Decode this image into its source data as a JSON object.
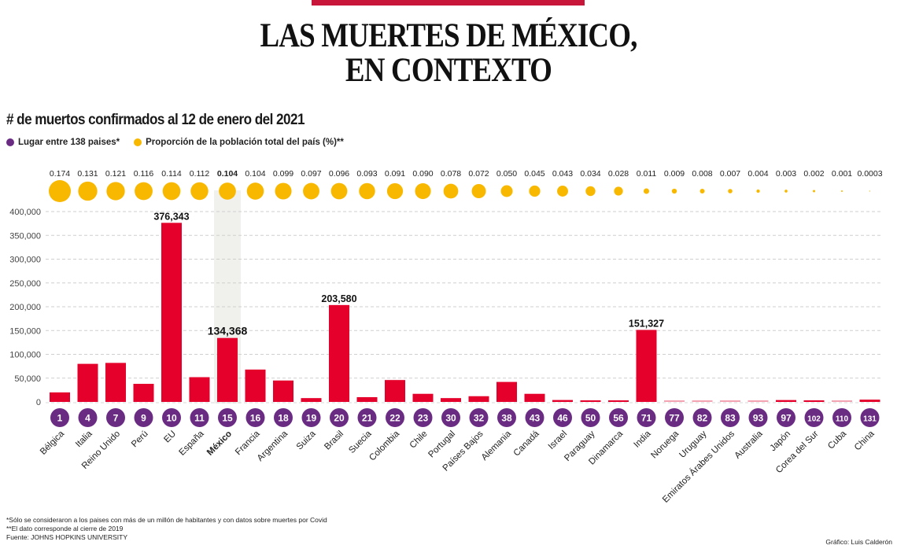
{
  "header": {
    "title_line1": "LAS MUERTES DE MÉXICO,",
    "title_line2": "EN CONTEXTO",
    "subtitle": "# de muertos confirmados al 12 de enero del 2021"
  },
  "legend": [
    {
      "label": "Lugar entre 138 paises*",
      "color": "#6a2c83"
    },
    {
      "label": "Proporción de la población total del país (%)**",
      "color": "#f9b800"
    }
  ],
  "colors": {
    "bar": "#e4002b",
    "bar_light": "#f4a3b3",
    "rank_circle": "#6a2c83",
    "proportion_circle": "#f9b800",
    "highlight_band": "#f0f0ec",
    "top_rule": "#c8163b"
  },
  "chart_data": {
    "type": "bar",
    "title": "LAS MUERTES DE MÉXICO, EN CONTEXTO",
    "subtitle": "# de muertos confirmados al 12 de enero del 2021",
    "xlabel": "",
    "ylabel": "",
    "ylim": [
      0,
      400000
    ],
    "yticks": [
      0,
      50000,
      100000,
      150000,
      200000,
      250000,
      300000,
      350000,
      400000
    ],
    "ytick_labels": [
      "0",
      "50,000",
      "100,000",
      "150,000",
      "200,000",
      "250,000",
      "300,000",
      "350,000",
      "400,000"
    ],
    "grid": true,
    "highlight": "México",
    "categories": [
      "Bélgica",
      "Italia",
      "Reino Unido",
      "Perú",
      "EU",
      "España",
      "México",
      "Francia",
      "Argentina",
      "Suiza",
      "Brasil",
      "Suecia",
      "Colombia",
      "Chile",
      "Portugal",
      "Países Bajos",
      "Alemania",
      "Canadá",
      "Israel",
      "Paraguay",
      "Dinamarca",
      "India",
      "Noruega",
      "Uruguay",
      "Emiratos Árabes Unidos",
      "Australia",
      "Japón",
      "Corea del Sur",
      "Cuba",
      "China"
    ],
    "series": [
      {
        "name": "Muertos confirmados",
        "values": [
          20000,
          80000,
          82000,
          38000,
          376343,
          52000,
          134368,
          68000,
          45000,
          8000,
          203580,
          10000,
          46000,
          17000,
          8000,
          12000,
          42000,
          17000,
          4000,
          2000,
          1500,
          151327,
          450,
          200,
          600,
          900,
          3900,
          1100,
          150,
          4800
        ]
      },
      {
        "name": "Lugar entre 138 paises",
        "values": [
          1,
          4,
          7,
          9,
          10,
          11,
          15,
          16,
          18,
          19,
          20,
          21,
          22,
          23,
          30,
          32,
          38,
          43,
          46,
          50,
          56,
          71,
          77,
          82,
          83,
          93,
          97,
          102,
          110,
          131
        ]
      },
      {
        "name": "Proporción de la población total del país (%)",
        "values": [
          0.174,
          0.131,
          0.121,
          0.116,
          0.114,
          0.112,
          0.104,
          0.104,
          0.099,
          0.097,
          0.096,
          0.093,
          0.091,
          0.09,
          0.078,
          0.072,
          0.05,
          0.045,
          0.043,
          0.034,
          0.028,
          0.011,
          0.009,
          0.008,
          0.007,
          0.004,
          0.003,
          0.002,
          0.001,
          0.0003
        ]
      }
    ],
    "proportion_labels": [
      "0.174",
      "0.131",
      "0.121",
      "0.116",
      "0.114",
      "0.112",
      "0.104",
      "0.104",
      "0.099",
      "0.097",
      "0.096",
      "0.093",
      "0.091",
      "0.090",
      "0.078",
      "0.072",
      "0.050",
      "0.045",
      "0.043",
      "0.034",
      "0.028",
      "0.011",
      "0.009",
      "0.008",
      "0.007",
      "0.004",
      "0.003",
      "0.002",
      "0.001",
      "0.0003"
    ],
    "data_labels": [
      {
        "category": "EU",
        "text": "376,343"
      },
      {
        "category": "México",
        "text": "134,368"
      },
      {
        "category": "Brasil",
        "text": "203,580"
      },
      {
        "category": "India",
        "text": "151,327"
      }
    ]
  },
  "footer": {
    "note1": "*Sólo se consideraron a los paises con más de un millón de habitantes y con datos sobre muertes por Covid",
    "note2": "**El dato corresponde al cierre de 2019",
    "source": "Fuente: JOHNS HOPKINS UNIVERSITY",
    "credit": "Gráfico: Luis Calderón"
  }
}
